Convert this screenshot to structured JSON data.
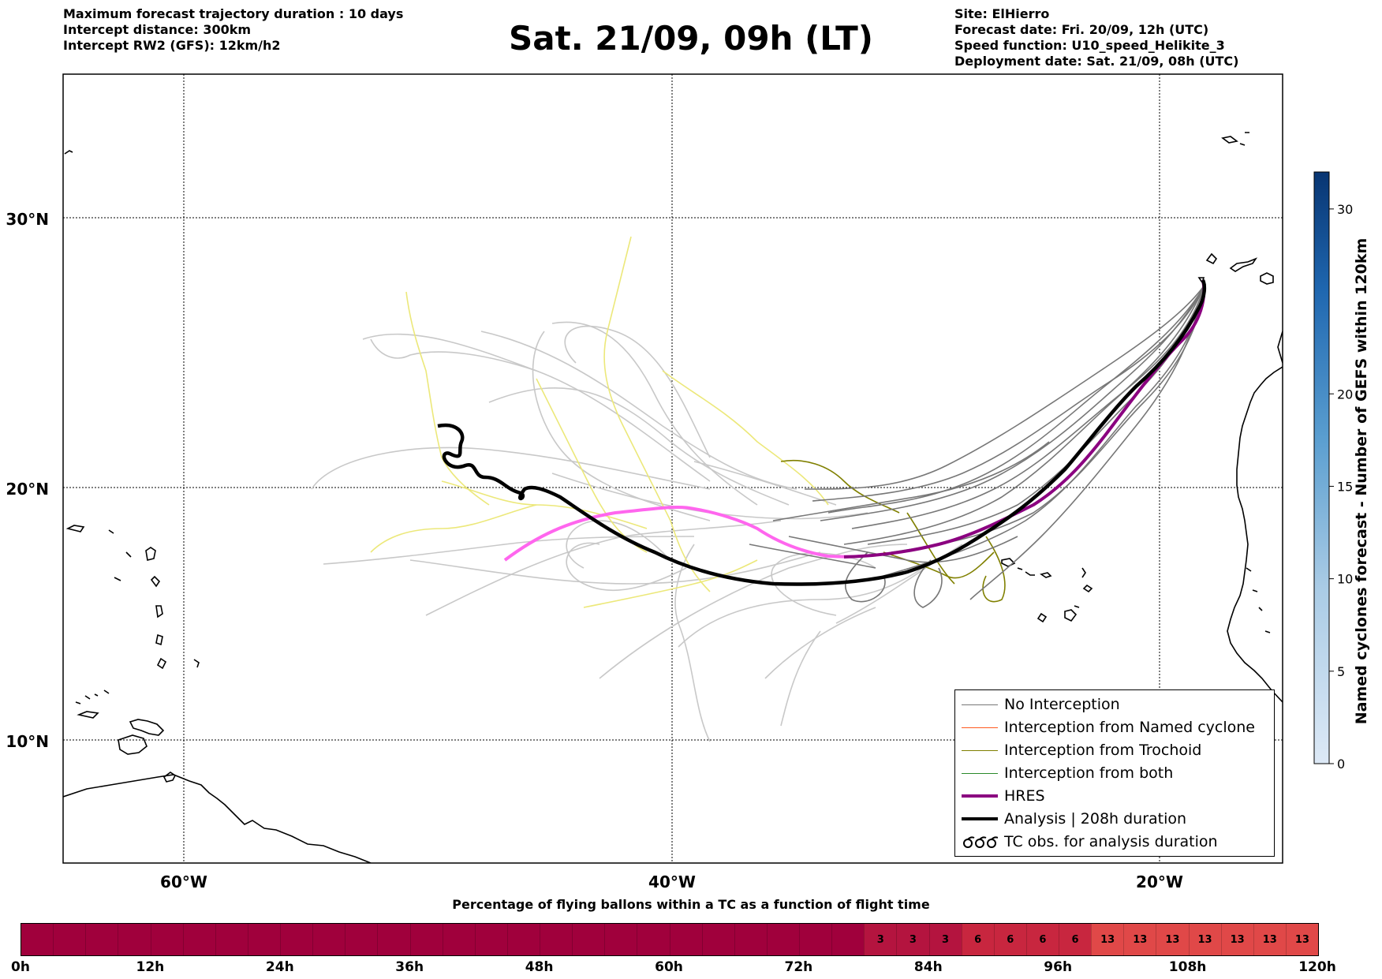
{
  "header": {
    "left_lines": [
      "Maximum forecast trajectory duration : 10 days",
      "Intercept distance: 300km",
      "Intercept RW2 (GFS):  12km/h2"
    ],
    "title": "Sat. 21/09, 09h (LT)",
    "right_lines": [
      "Site: ElHierro",
      "Forecast date: Fri. 20/09, 12h (UTC)",
      "Speed function: U10_speed_Helikite_3",
      "Deployment date: Sat. 21/09, 08h (UTC)"
    ]
  },
  "map": {
    "lat_labels": [
      "30°N",
      "20°N",
      "10°N"
    ],
    "lon_labels": [
      "60°W",
      "40°W",
      "20°W"
    ],
    "colors": {
      "no_interception": "#777777",
      "gefs_faint": "#c8c8c8",
      "yellow": "#ece87a",
      "trochoid": "#808000",
      "named_cyclone": "#ff5a1f",
      "both": "#2a8a2a",
      "hres": "#8b0080",
      "hres_early": "#ff66ee",
      "analysis": "#000000",
      "coast": "#000000"
    }
  },
  "legend": {
    "items": [
      {
        "label": "No Interception",
        "icon": "thin-grey-line"
      },
      {
        "label": "Interception from Named cyclone",
        "icon": "thin-orange-line"
      },
      {
        "label": "Interception from Trochoid",
        "icon": "thin-olive-line"
      },
      {
        "label": "Interception from both",
        "icon": "thin-green-line"
      },
      {
        "label": "HRES",
        "icon": "thick-purple-line"
      },
      {
        "label": "Analysis | 208h duration",
        "icon": "thick-black-line"
      },
      {
        "label": "TC obs. for analysis duration",
        "icon": "cyclone-symbol-icon"
      }
    ]
  },
  "colorbar": {
    "label": "Named cyclones forecast - Number of GEFS within 120km",
    "ticks": [
      "0",
      "5",
      "10",
      "15",
      "20",
      "30"
    ],
    "tick_values": [
      0,
      5,
      10,
      15,
      20,
      30
    ],
    "max": 32
  },
  "bottom_bar": {
    "caption": "Percentage of flying ballons within a TC as a function of flight time",
    "ticks": [
      "0h",
      "12h",
      "24h",
      "36h",
      "48h",
      "60h",
      "72h",
      "84h",
      "96h",
      "108h",
      "120h"
    ],
    "cell_values": [
      "",
      "",
      "",
      "",
      "",
      "",
      "",
      "",
      "",
      "",
      "",
      "",
      "",
      "",
      "",
      "",
      "",
      "",
      "",
      "",
      "",
      "",
      "",
      "",
      "",
      "",
      "3",
      "3",
      "3",
      "6",
      "6",
      "6",
      "6",
      "13",
      "13",
      "13",
      "13",
      "13",
      "13",
      "13"
    ],
    "colors": {
      "base": "#a0003c",
      "three": "#b4143f",
      "six": "#c8263f",
      "thirteen": "#e04848"
    }
  }
}
